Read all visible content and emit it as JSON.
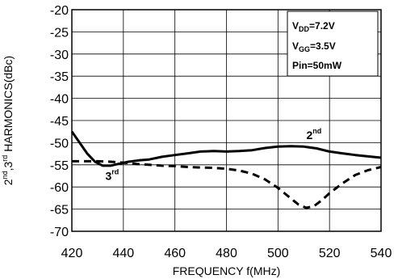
{
  "chart_data": {
    "type": "line",
    "title": "",
    "xlabel": "FREQUENCY f(MHz)",
    "ylabel": {
      "parts": [
        "2",
        "nd",
        ",3",
        "rd",
        " HARMONICS(dBc)"
      ]
    },
    "xlim": [
      420,
      540
    ],
    "ylim": [
      -70,
      -20
    ],
    "x_ticks": [
      420,
      440,
      460,
      480,
      500,
      520,
      540
    ],
    "y_ticks": [
      -20,
      -25,
      -30,
      -35,
      -40,
      -45,
      -50,
      -55,
      -60,
      -65,
      -70
    ],
    "grid": true,
    "legend_box": {
      "position": "top-right",
      "lines": [
        {
          "main": "V",
          "sub": "DD",
          "rest": "=7.2V"
        },
        {
          "main": "V",
          "sub": "GG",
          "rest": "=3.5V"
        },
        {
          "main": "Pin=50mW",
          "sub": "",
          "rest": ""
        }
      ]
    },
    "series": [
      {
        "name": "2nd",
        "label_main": "2",
        "label_sup": "nd",
        "label_at": [
          511,
          -49.2
        ],
        "style": "solid",
        "x": [
          420,
          423,
          426,
          429,
          432,
          435,
          438,
          442,
          446,
          450,
          455,
          460,
          465,
          470,
          475,
          480,
          485,
          490,
          495,
          500,
          505,
          510,
          515,
          520,
          525,
          530,
          535,
          540
        ],
        "y": [
          -47.5,
          -50.0,
          -52.5,
          -54.3,
          -55.2,
          -55.2,
          -54.8,
          -54.3,
          -54.0,
          -53.8,
          -53.2,
          -52.8,
          -52.4,
          -52.0,
          -51.9,
          -52.0,
          -51.9,
          -51.7,
          -51.2,
          -50.9,
          -50.8,
          -50.9,
          -51.3,
          -52.0,
          -52.4,
          -52.8,
          -53.1,
          -53.4
        ]
      },
      {
        "name": "3rd",
        "label_main": "3",
        "label_sup": "rd",
        "label_at": [
          433,
          -58.4
        ],
        "style": "dashed",
        "x": [
          420,
          425,
          430,
          435,
          440,
          445,
          450,
          455,
          460,
          465,
          470,
          475,
          480,
          485,
          490,
          495,
          500,
          505,
          508,
          511,
          514,
          517,
          520,
          525,
          530,
          535,
          540
        ],
        "y": [
          -54.2,
          -54.2,
          -54.2,
          -54.3,
          -54.5,
          -54.8,
          -55.0,
          -55.2,
          -55.3,
          -55.5,
          -55.6,
          -55.7,
          -55.9,
          -56.3,
          -57.0,
          -58.3,
          -60.2,
          -62.6,
          -64.0,
          -64.7,
          -64.3,
          -63.0,
          -61.4,
          -59.2,
          -57.3,
          -56.2,
          -55.5
        ]
      }
    ]
  }
}
